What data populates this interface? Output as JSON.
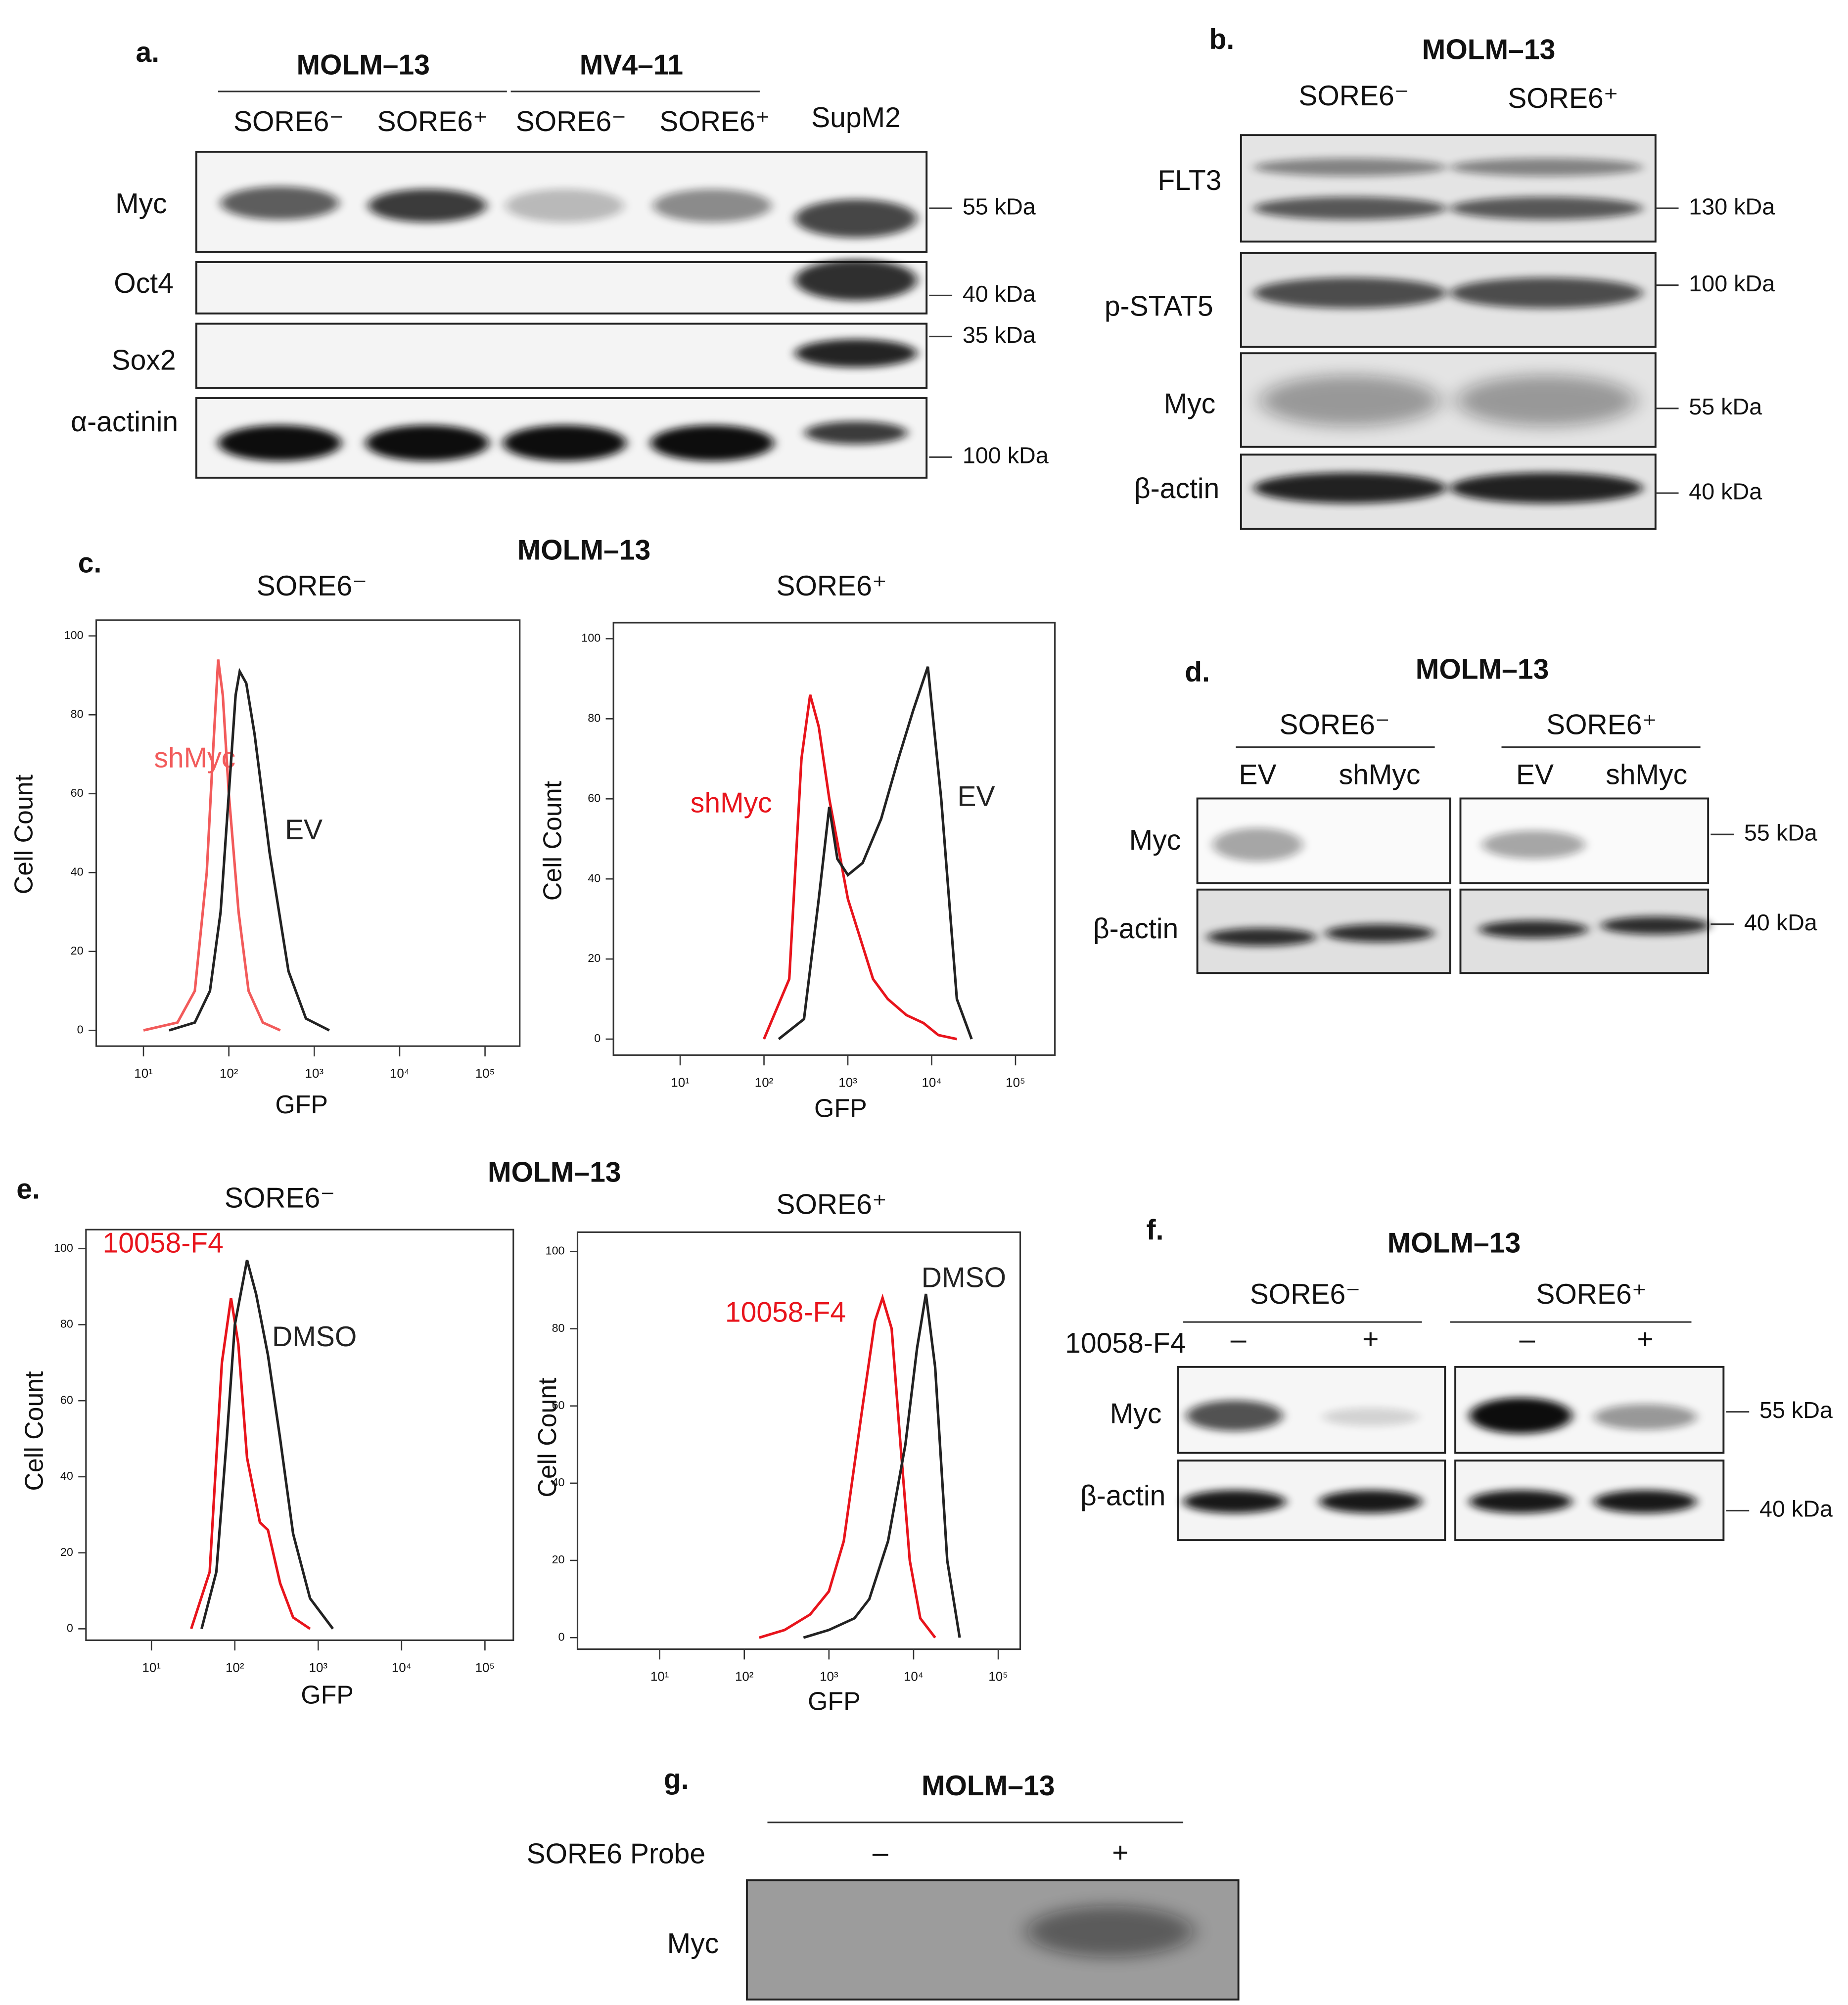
{
  "panel_a": {
    "label": "a.",
    "cell_lines": [
      {
        "name": "MOLM–13",
        "lanes": [
          "SORE6⁻",
          "SORE6⁺"
        ]
      },
      {
        "name": "MV4–11",
        "lanes": [
          "SORE6⁻",
          "SORE6⁺"
        ]
      }
    ],
    "extra_lane": "SupM2",
    "rows": [
      "Myc",
      "Oct4",
      "Sox2",
      "α-actinin"
    ],
    "markers": [
      "55 kDa",
      "40 kDa",
      "35 kDa",
      "100 kDa"
    ]
  },
  "panel_b": {
    "label": "b.",
    "title": "MOLM–13",
    "lanes": [
      "SORE6⁻",
      "SORE6⁺"
    ],
    "rows": [
      "FLT3",
      "p-STAT5",
      "Myc",
      "β-actin"
    ],
    "markers": [
      "130 kDa",
      "100 kDa",
      "55 kDa",
      "40 kDa"
    ]
  },
  "panel_c": {
    "label": "c.",
    "title": "MOLM–13"
  },
  "panel_d": {
    "label": "d.",
    "title": "MOLM–13",
    "groups": [
      {
        "name": "SORE6⁻",
        "lanes": [
          "EV",
          "shMyc"
        ]
      },
      {
        "name": "SORE6⁺",
        "lanes": [
          "EV",
          "shMyc"
        ]
      }
    ],
    "rows": [
      "Myc",
      "β-actin"
    ],
    "markers": [
      "55 kDa",
      "40 kDa"
    ]
  },
  "panel_e": {
    "label": "e.",
    "title": "MOLM–13"
  },
  "panel_f": {
    "label": "f.",
    "title": "MOLM–13",
    "treatment_label": "10058-F4",
    "groups": [
      {
        "name": "SORE6⁻",
        "lanes": [
          "–",
          "+"
        ]
      },
      {
        "name": "SORE6⁺",
        "lanes": [
          "–",
          "+"
        ]
      }
    ],
    "rows": [
      "Myc",
      "β-actin"
    ],
    "markers": [
      "55 kDa",
      "40 kDa"
    ]
  },
  "panel_g": {
    "label": "g.",
    "title": "MOLM–13",
    "probe_label": "SORE6 Probe",
    "lanes": [
      "–",
      "+"
    ],
    "rows": [
      "Myc"
    ]
  },
  "chart_data": [
    {
      "type": "line",
      "title": "SORE6⁻",
      "xlabel": "GFP",
      "ylabel": "Cell Count",
      "log_x": true,
      "xlim": [
        2.8,
        255000
      ],
      "ylim": [
        -4,
        104
      ],
      "xticks": [
        {
          "value": 10,
          "label": "10¹"
        },
        {
          "value": 100,
          "label": "10²"
        },
        {
          "value": 1000,
          "label": "10³"
        },
        {
          "value": 10000,
          "label": "10⁴"
        },
        {
          "value": 100000,
          "label": "10⁵"
        }
      ],
      "yticks": [
        0,
        20,
        40,
        60,
        80,
        100
      ],
      "series": [
        {
          "name": "shMyc",
          "color": "#f25b5b",
          "x": [
            10,
            25,
            40,
            55,
            65,
            75,
            85,
            100,
            130,
            170,
            250,
            400
          ],
          "values": [
            0,
            2,
            10,
            40,
            70,
            94,
            85,
            60,
            30,
            10,
            2,
            0
          ]
        },
        {
          "name": "EV",
          "color": "#222222",
          "x": [
            20,
            40,
            60,
            80,
            100,
            120,
            134,
            160,
            200,
            300,
            500,
            800,
            1500
          ],
          "values": [
            0,
            2,
            10,
            30,
            60,
            85,
            91,
            88,
            75,
            45,
            15,
            3,
            0
          ]
        }
      ]
    },
    {
      "type": "line",
      "title": "SORE6⁺",
      "xlabel": "GFP",
      "ylabel": "Cell Count",
      "log_x": true,
      "xlim": [
        1.6,
        295000
      ],
      "ylim": [
        -4,
        104
      ],
      "xticks": [
        {
          "value": 10,
          "label": "10¹"
        },
        {
          "value": 100,
          "label": "10²"
        },
        {
          "value": 1000,
          "label": "10³"
        },
        {
          "value": 10000,
          "label": "10⁴"
        },
        {
          "value": 100000,
          "label": "10⁵"
        }
      ],
      "yticks": [
        0,
        20,
        40,
        60,
        80,
        100
      ],
      "series": [
        {
          "name": "shMyc",
          "color": "#e8141c",
          "x": [
            100,
            200,
            280,
            355,
            450,
            600,
            1000,
            2000,
            3000,
            5000,
            8000,
            12000,
            20000
          ],
          "values": [
            0,
            15,
            70,
            86,
            78,
            60,
            35,
            15,
            10,
            6,
            4,
            1,
            0
          ]
        },
        {
          "name": "EV",
          "color": "#222222",
          "x": [
            150,
            300,
            450,
            600,
            750,
            1000,
            1500,
            2500,
            4000,
            6000,
            9000,
            13000,
            20000,
            30000
          ],
          "values": [
            0,
            5,
            35,
            58,
            45,
            41,
            44,
            55,
            70,
            82,
            93,
            60,
            10,
            0
          ]
        }
      ]
    },
    {
      "type": "line",
      "title": "SORE6⁻",
      "xlabel": "GFP",
      "ylabel": "Cell Count",
      "log_x": true,
      "xlim": [
        1.64,
        219000
      ],
      "ylim": [
        -3,
        105
      ],
      "xticks": [
        {
          "value": 10,
          "label": "10¹"
        },
        {
          "value": 100,
          "label": "10²"
        },
        {
          "value": 1000,
          "label": "10³"
        },
        {
          "value": 10000,
          "label": "10⁴"
        },
        {
          "value": 100000,
          "label": "10⁵"
        }
      ],
      "yticks": [
        0,
        20,
        40,
        60,
        80,
        100
      ],
      "series": [
        {
          "name": "10058-F4",
          "color": "#e8141c",
          "x": [
            30,
            50,
            70,
            90,
            110,
            140,
            200,
            250,
            350,
            500,
            800
          ],
          "values": [
            0,
            15,
            70,
            87,
            75,
            45,
            28,
            26,
            12,
            3,
            0
          ]
        },
        {
          "name": "DMSO",
          "color": "#222222",
          "x": [
            40,
            60,
            80,
            100,
            140,
            180,
            250,
            350,
            500,
            800,
            1500
          ],
          "values": [
            0,
            15,
            50,
            80,
            97,
            88,
            72,
            50,
            25,
            8,
            0
          ]
        }
      ]
    },
    {
      "type": "line",
      "title": "SORE6⁺",
      "xlabel": "GFP",
      "ylabel": "Cell Count",
      "log_x": true,
      "xlim": [
        1.07,
        182000
      ],
      "ylim": [
        -3,
        105
      ],
      "xticks": [
        {
          "value": 10,
          "label": "10¹"
        },
        {
          "value": 100,
          "label": "10²"
        },
        {
          "value": 1000,
          "label": "10³"
        },
        {
          "value": 10000,
          "label": "10⁴"
        },
        {
          "value": 100000,
          "label": "10⁵"
        }
      ],
      "yticks": [
        0,
        20,
        40,
        60,
        80,
        100
      ],
      "series": [
        {
          "name": "10058-F4",
          "color": "#e8141c",
          "x": [
            150,
            300,
            600,
            1000,
            1500,
            2500,
            3500,
            4300,
            5500,
            7000,
            9000,
            12000,
            18000
          ],
          "values": [
            0,
            2,
            6,
            12,
            25,
            60,
            82,
            88,
            80,
            50,
            20,
            5,
            0
          ]
        },
        {
          "name": "DMSO",
          "color": "#222222",
          "x": [
            500,
            1000,
            2000,
            3000,
            5000,
            8000,
            11000,
            14000,
            18000,
            25000,
            35000
          ],
          "values": [
            0,
            2,
            5,
            10,
            25,
            50,
            75,
            89,
            70,
            20,
            0
          ]
        }
      ]
    }
  ]
}
